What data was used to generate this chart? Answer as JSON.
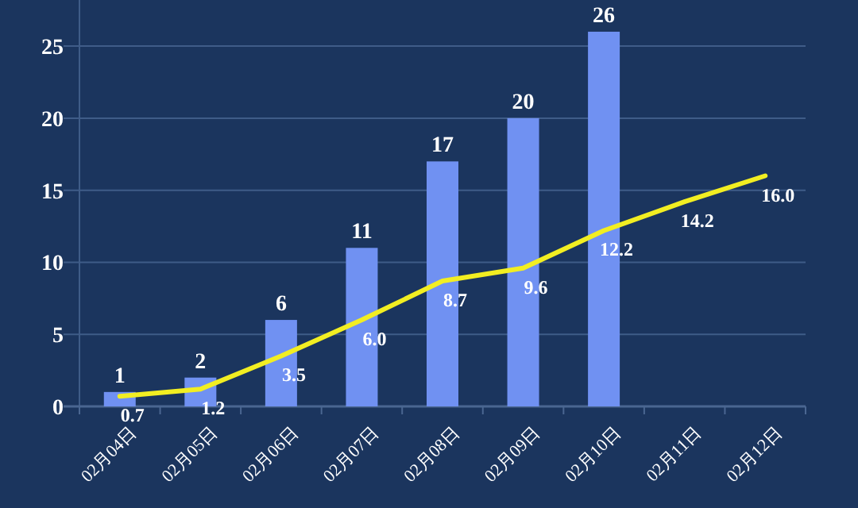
{
  "chart_data": {
    "type": "bar",
    "categories": [
      "02月04日",
      "02月05日",
      "02月06日",
      "02月07日",
      "02月08日",
      "02月09日",
      "02月10日",
      "02月11日",
      "02月12日"
    ],
    "series": [
      {
        "color": "#7091f2",
        "values": [
          1,
          2,
          6,
          11,
          17,
          20,
          26,
          null,
          null
        ],
        "data_labels": true
      },
      {
        "type": "line",
        "color": "#f2ee22",
        "values": [
          0.7,
          1.2,
          3.5,
          6.0,
          8.7,
          9.6,
          12.2,
          14.2,
          16.0
        ],
        "value_labels": [
          "0.7",
          "1.2",
          "3.5",
          "6.0",
          "8.7",
          "9.6",
          "12.2",
          "14.2",
          "16.0"
        ],
        "marker": "none"
      }
    ],
    "ylim": [
      0,
      28.2
    ],
    "yticks": [
      0,
      5,
      10,
      15,
      20,
      25
    ],
    "grid": "y"
  }
}
